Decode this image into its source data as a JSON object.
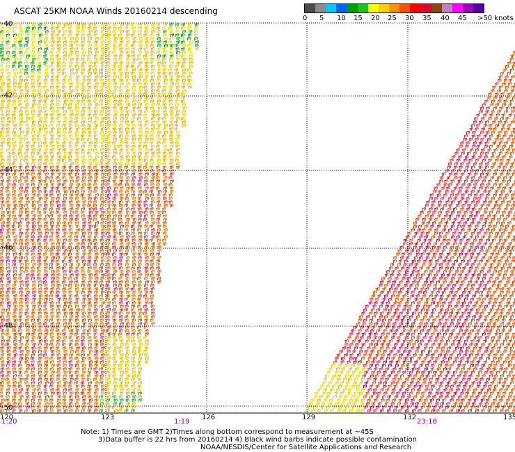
{
  "title": "ASCAT 25KM NOAA Winds 20160214 descending",
  "colorbar": {
    "colors": [
      "#4a4a4a",
      "#8a8a8a",
      "#00c8ff",
      "#0064ff",
      "#00a000",
      "#20c020",
      "#ffff00",
      "#ffd000",
      "#ff9000",
      "#ff5000",
      "#ff0000",
      "#e00030",
      "#8b4513",
      "#c080c0",
      "#ff00ff",
      "#a000c0",
      "#5000a0"
    ],
    "labels": [
      "0",
      "5",
      "10",
      "15",
      "20",
      "25",
      "30",
      "35",
      "40",
      "45",
      ">50 knots"
    ]
  },
  "map": {
    "latitude_labels": [
      "-40",
      "-42",
      "-44",
      "-46",
      "-48",
      "-50"
    ],
    "longitude_labels": [
      "120",
      "123",
      "126",
      "129",
      "132",
      "135"
    ],
    "pass_times": [
      "1:20",
      "1:19",
      "23:18"
    ]
  },
  "notes": [
    "Note: 1) Times are GMT 2)Times along bottom correspond to measurement at ~45S",
    "3)Data buffer is 22 hrs from 20160214 4) Black wind barbs indicate possible contamination",
    "NOAA/NESDIS/Center for Satellite Applications and Research"
  ]
}
